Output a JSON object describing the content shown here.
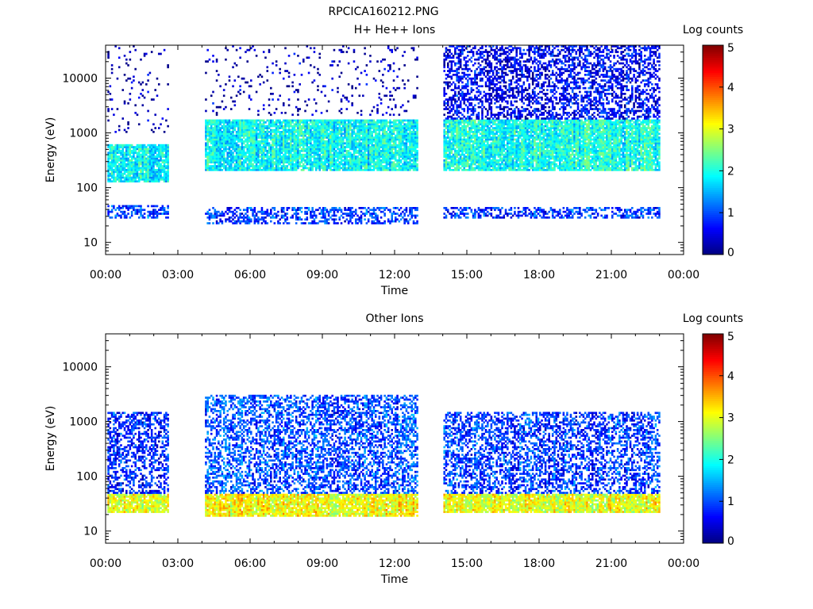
{
  "figure_title": "RPCICA160212.PNG",
  "chart_data": [
    {
      "type": "heatmap",
      "title": "H+ He++ Ions",
      "xlabel": "Time",
      "ylabel": "Energy (eV)",
      "x_ticks": [
        "00:00",
        "03:00",
        "06:00",
        "09:00",
        "12:00",
        "15:00",
        "18:00",
        "21:00",
        "00:00"
      ],
      "x_range_hours": [
        0,
        24
      ],
      "y_scale": "log",
      "y_range": [
        6,
        40000
      ],
      "y_ticks": [
        {
          "value": 10,
          "label": "10"
        },
        {
          "value": 100,
          "label": "100"
        },
        {
          "value": 1000,
          "label": "1000"
        },
        {
          "value": 10000,
          "label": "10000"
        }
      ],
      "colorbar": {
        "label": "Log counts",
        "range": [
          0,
          5
        ],
        "ticks": [
          "0",
          "1",
          "2",
          "3",
          "4",
          "5"
        ],
        "colormap": "jet"
      },
      "data_gaps_hours": [
        [
          2.7,
          4.1
        ],
        [
          12.95,
          14.0
        ],
        [
          23.05,
          24.0
        ]
      ],
      "bands": [
        {
          "from_hours": 0.05,
          "to_hours": 2.65,
          "energy_low": 27,
          "energy_high": 48,
          "level": 1.0
        },
        {
          "from_hours": 4.1,
          "to_hours": 12.95,
          "energy_low": 22,
          "energy_high": 45,
          "level": 0.9
        },
        {
          "from_hours": 14.0,
          "to_hours": 23.05,
          "energy_low": 27,
          "energy_high": 45,
          "level": 0.9
        },
        {
          "from_hours": 0.05,
          "to_hours": 2.65,
          "energy_low": 130,
          "energy_high": 600,
          "level": 1.9
        },
        {
          "from_hours": 4.1,
          "to_hours": 12.95,
          "energy_low": 200,
          "energy_high": 1800,
          "level": 1.9
        },
        {
          "from_hours": 14.0,
          "to_hours": 23.05,
          "energy_low": 200,
          "energy_high": 1800,
          "level": 2.0
        },
        {
          "from_hours": 14.0,
          "to_hours": 23.05,
          "energy_low": 600,
          "energy_high": 40000,
          "level": 0.6
        },
        {
          "from_hours": 0.05,
          "to_hours": 2.65,
          "energy_low": 1000,
          "energy_high": 40000,
          "level": 0.2
        },
        {
          "from_hours": 4.1,
          "to_hours": 12.95,
          "energy_low": 2000,
          "energy_high": 40000,
          "level": 0.2
        }
      ]
    },
    {
      "type": "heatmap",
      "title": "Other Ions",
      "xlabel": "Time",
      "ylabel": "Energy (eV)",
      "x_ticks": [
        "00:00",
        "03:00",
        "06:00",
        "09:00",
        "12:00",
        "15:00",
        "18:00",
        "21:00",
        "00:00"
      ],
      "x_range_hours": [
        0,
        24
      ],
      "y_scale": "log",
      "y_range": [
        6,
        40000
      ],
      "y_ticks": [
        {
          "value": 10,
          "label": "10"
        },
        {
          "value": 100,
          "label": "100"
        },
        {
          "value": 1000,
          "label": "1000"
        },
        {
          "value": 10000,
          "label": "10000"
        }
      ],
      "colorbar": {
        "label": "Log counts",
        "range": [
          0,
          5
        ],
        "ticks": [
          "0",
          "1",
          "2",
          "3",
          "4",
          "5"
        ],
        "colormap": "jet"
      },
      "data_gaps_hours": [
        [
          2.7,
          4.1
        ],
        [
          12.95,
          14.0
        ],
        [
          23.05,
          24.0
        ]
      ],
      "bands": [
        {
          "from_hours": 0.05,
          "to_hours": 2.65,
          "energy_low": 22,
          "energy_high": 50,
          "level": 3.0
        },
        {
          "from_hours": 4.1,
          "to_hours": 12.95,
          "energy_low": 18,
          "energy_high": 50,
          "level": 3.1
        },
        {
          "from_hours": 14.0,
          "to_hours": 23.05,
          "energy_low": 22,
          "energy_high": 50,
          "level": 3.0
        },
        {
          "from_hours": 0.05,
          "to_hours": 2.65,
          "energy_low": 50,
          "energy_high": 1500,
          "level": 0.8
        },
        {
          "from_hours": 4.1,
          "to_hours": 12.95,
          "energy_low": 50,
          "energy_high": 3000,
          "level": 1.0
        },
        {
          "from_hours": 14.0,
          "to_hours": 23.05,
          "energy_low": 50,
          "energy_high": 1500,
          "level": 0.9
        }
      ]
    }
  ]
}
